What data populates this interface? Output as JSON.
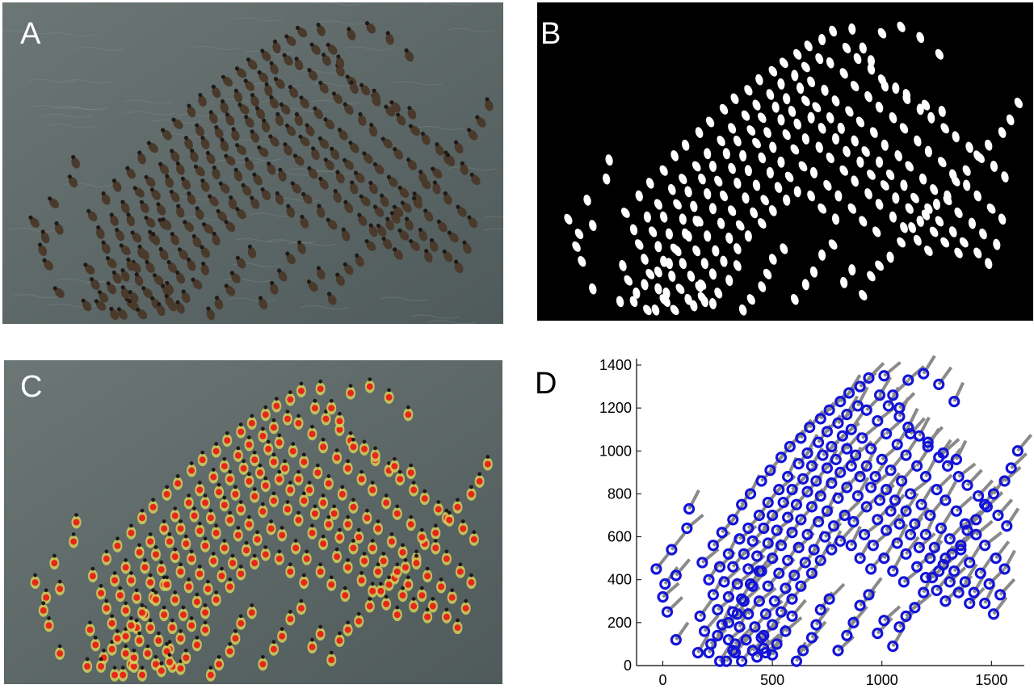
{
  "panel_labels": {
    "a": "A",
    "b": "B",
    "c": "C",
    "d": "D"
  },
  "colors": {
    "water_light": "#6b7675",
    "water_dark": "#4f5a5a",
    "duck_body": "#4a3a2c",
    "duck_head": "#1f1a16",
    "mask_blob": "#ffffff",
    "mask_bg": "#000000",
    "detect_fill": "#d4cf5a",
    "detect_dot": "#e8261a",
    "marker": "#1414d8",
    "heading": "#8a8a8a",
    "axis": "#000000"
  },
  "chart_data": {
    "type": "scatter",
    "title": "",
    "xlabel": "",
    "ylabel": "",
    "xlim": [
      -120,
      1650
    ],
    "ylim": [
      0,
      1430
    ],
    "xticks": [
      "0",
      "500",
      "1000",
      "1500"
    ],
    "yticks": [
      "0",
      "200",
      "400",
      "600",
      "800",
      "1000",
      "1200",
      "1400"
    ],
    "xtick_values": [
      0,
      500,
      1000,
      1500
    ],
    "ytick_values": [
      0,
      200,
      400,
      600,
      800,
      1000,
      1200,
      1400
    ],
    "marker": "ring",
    "heading_line": "gray segment per bird indicating orientation",
    "x": [
      -30,
      10,
      0,
      20,
      60,
      40,
      110,
      120,
      170,
      190,
      220,
      210,
      250,
      300,
      290,
      320,
      340,
      370,
      400,
      440,
      460,
      470,
      500,
      520,
      560,
      590,
      610,
      640,
      680,
      700,
      720,
      760,
      800,
      840,
      870,
      900,
      940,
      980,
      1010,
      1050,
      1080,
      1110,
      1150,
      1190,
      1230,
      1280,
      1320,
      1360,
      1390,
      1430,
      1470,
      1510,
      1560,
      1590,
      1620,
      180,
      230,
      270,
      320,
      360,
      400,
      450,
      490,
      540,
      580,
      630,
      670,
      720,
      760,
      810,
      850,
      900,
      940,
      990,
      1030,
      1080,
      1120,
      1170,
      1210,
      1260,
      1300,
      1350,
      1390,
      1440,
      1480,
      1530,
      1570,
      210,
      260,
      300,
      350,
      390,
      440,
      480,
      530,
      570,
      620,
      660,
      710,
      750,
      800,
      840,
      890,
      930,
      980,
      1020,
      1070,
      1110,
      1160,
      1200,
      1250,
      1290,
      1340,
      1380,
      1430,
      1470,
      1520,
      1560,
      230,
      280,
      320,
      370,
      410,
      460,
      500,
      550,
      590,
      640,
      680,
      730,
      770,
      820,
      860,
      910,
      950,
      1000,
      1040,
      1090,
      1130,
      1180,
      1220,
      1270,
      1310,
      1360,
      1400,
      1450,
      1490,
      1540,
      250,
      300,
      340,
      390,
      430,
      480,
      520,
      570,
      610,
      660,
      700,
      750,
      790,
      840,
      880,
      930,
      970,
      1020,
      1060,
      1110,
      1150,
      1200,
      1240,
      1290,
      1330,
      1380,
      1420,
      1470,
      1510,
      270,
      320,
      360,
      410,
      450,
      500,
      540,
      590,
      630,
      680,
      720,
      770,
      810,
      860,
      900,
      950,
      990,
      1040,
      1080,
      1130,
      1170,
      1220,
      1260,
      1310,
      1350,
      1400,
      300,
      350,
      390,
      440,
      480,
      530,
      570,
      620,
      660,
      710,
      750,
      800,
      840,
      890,
      930,
      980,
      1020,
      1070,
      1110,
      1160,
      1200,
      1250,
      1290,
      330,
      380,
      420,
      470,
      510,
      560,
      600,
      650,
      690,
      740,
      780,
      830,
      870,
      920,
      960,
      1010,
      1050,
      1100,
      360,
      410,
      450,
      500,
      540,
      590,
      630,
      680,
      720,
      770,
      810,
      860,
      900,
      950,
      1010,
      1050,
      1120,
      1190,
      1260,
      1330,
      1080,
      1130,
      1210,
      1280,
      1340,
      60,
      160,
      260,
      330,
      430,
      460
    ],
    "y": [
      450,
      380,
      320,
      250,
      420,
      540,
      640,
      730,
      230,
      160,
      100,
      60,
      140,
      200,
      20,
      70,
      240,
      300,
      380,
      440,
      140,
      60,
      50,
      100,
      160,
      230,
      20,
      70,
      130,
      190,
      260,
      310,
      70,
      140,
      200,
      280,
      330,
      150,
      210,
      90,
      180,
      230,
      270,
      340,
      410,
      470,
      520,
      560,
      630,
      680,
      750,
      800,
      860,
      920,
      1000,
      480,
      560,
      620,
      680,
      750,
      800,
      860,
      910,
      970,
      1020,
      1060,
      1110,
      1150,
      1190,
      1230,
      1270,
      1300,
      1340,
      1260,
      1210,
      1160,
      1110,
      1070,
      1020,
      970,
      930,
      880,
      840,
      790,
      740,
      700,
      650,
      400,
      460,
      520,
      590,
      640,
      700,
      760,
      820,
      880,
      940,
      990,
      1040,
      1090,
      1130,
      1170,
      1210,
      1190,
      1140,
      1080,
      1030,
      980,
      930,
      880,
      820,
      770,
      720,
      660,
      610,
      560,
      500,
      450,
      330,
      390,
      460,
      520,
      580,
      640,
      700,
      760,
      820,
      870,
      930,
      980,
      1020,
      1070,
      1100,
      1060,
      1010,
      960,
      910,
      860,
      800,
      750,
      700,
      640,
      590,
      540,
      480,
      430,
      380,
      330,
      260,
      320,
      380,
      450,
      510,
      570,
      630,
      690,
      750,
      810,
      860,
      920,
      960,
      1010,
      980,
      930,
      880,
      820,
      770,
      720,
      660,
      610,
      550,
      500,
      440,
      390,
      340,
      290,
      240,
      190,
      250,
      310,
      370,
      440,
      500,
      560,
      620,
      680,
      740,
      790,
      850,
      900,
      930,
      880,
      830,
      770,
      720,
      660,
      610,
      550,
      500,
      440,
      390,
      340,
      290,
      120,
      180,
      240,
      300,
      370,
      430,
      490,
      550,
      610,
      670,
      720,
      780,
      830,
      790,
      740,
      680,
      630,
      570,
      520,
      460,
      410,
      350,
      300,
      60,
      120,
      180,
      240,
      300,
      360,
      420,
      480,
      540,
      600,
      650,
      700,
      670,
      610,
      560,
      500,
      440,
      390,
      20,
      70,
      130,
      190,
      250,
      310,
      370,
      430,
      490,
      540,
      580,
      560,
      500,
      450,
      1350,
      1260,
      1330,
      1360,
      1310,
      1230,
      1200,
      1080,
      1040,
      990,
      960,
      120,
      60,
      20,
      100,
      40,
      80
    ]
  }
}
